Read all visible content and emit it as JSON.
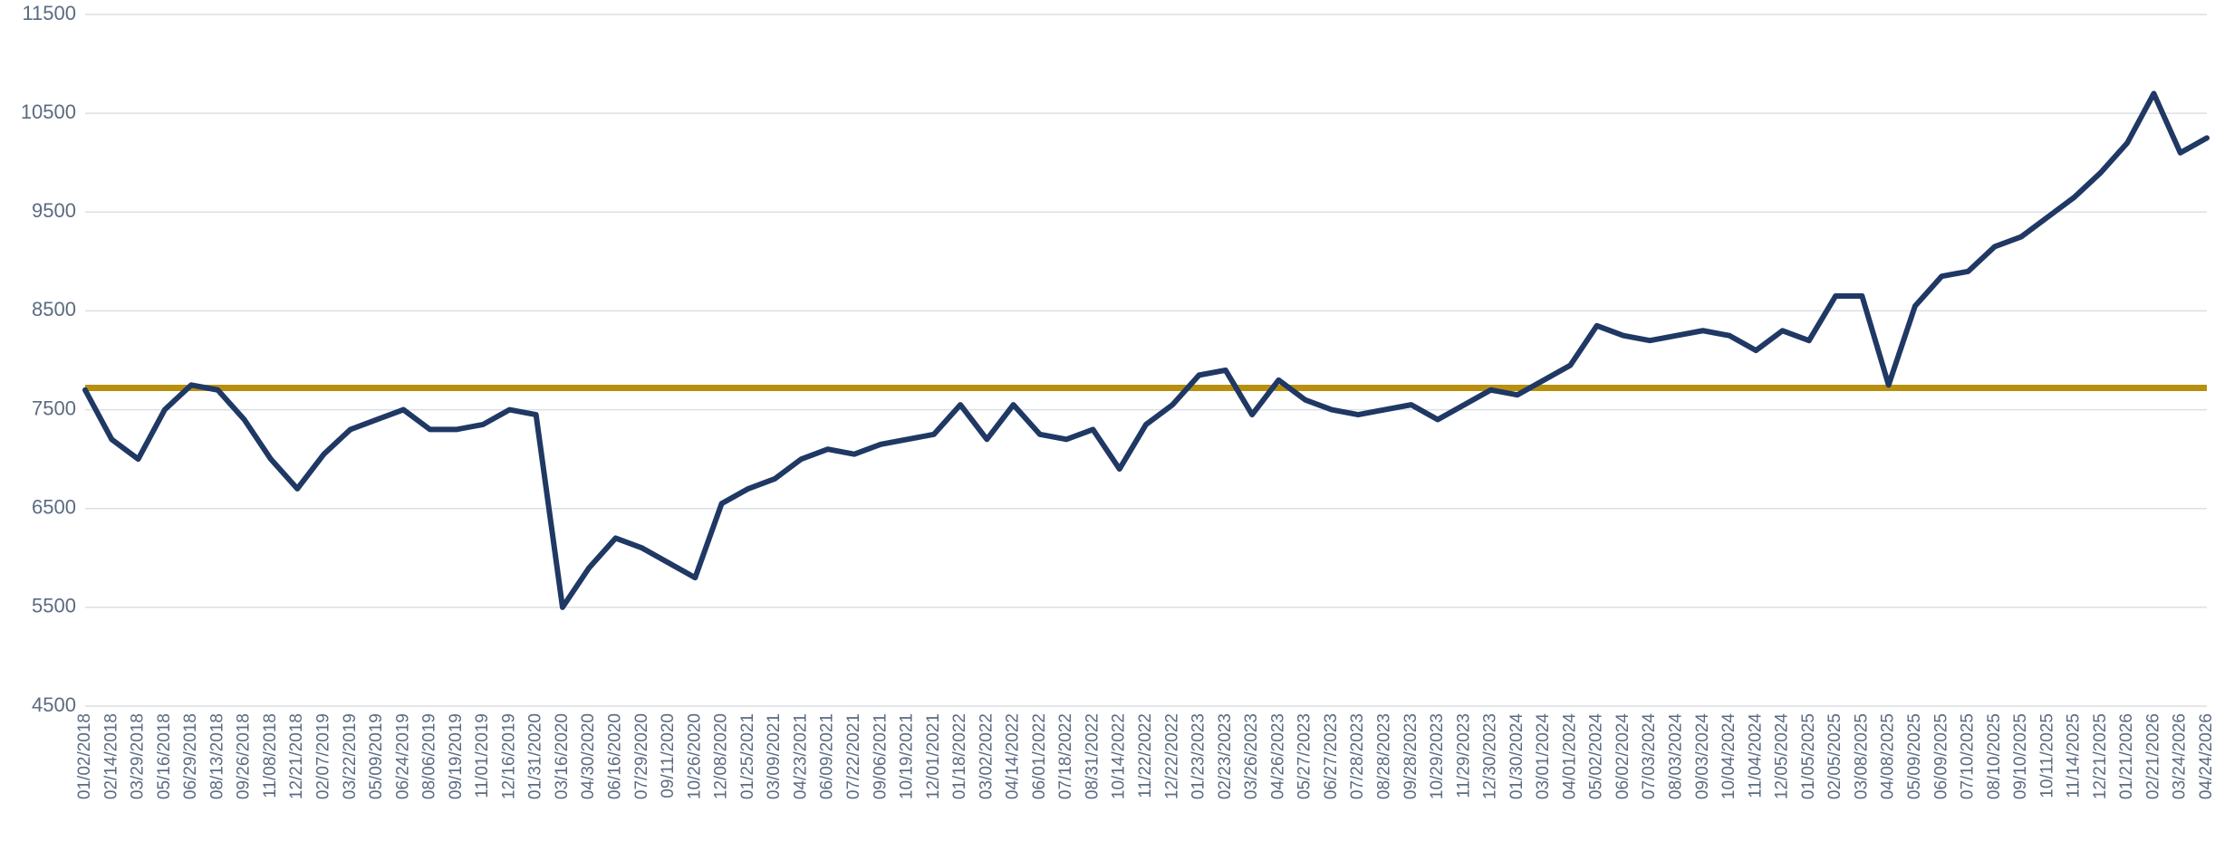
{
  "chart_data": {
    "type": "line",
    "categories": [
      "01/02/2018",
      "02/14/2018",
      "03/29/2018",
      "05/16/2018",
      "06/29/2018",
      "08/13/2018",
      "09/26/2018",
      "11/08/2018",
      "12/21/2018",
      "02/07/2019",
      "03/22/2019",
      "05/09/2019",
      "06/24/2019",
      "08/06/2019",
      "09/19/2019",
      "11/01/2019",
      "12/16/2019",
      "01/31/2020",
      "03/16/2020",
      "04/30/2020",
      "06/16/2020",
      "07/29/2020",
      "09/11/2020",
      "10/26/2020",
      "12/08/2020",
      "01/25/2021",
      "03/09/2021",
      "04/23/2021",
      "06/09/2021",
      "07/22/2021",
      "09/06/2021",
      "10/19/2021",
      "12/01/2021",
      "01/18/2022",
      "03/02/2022",
      "04/14/2022",
      "06/01/2022",
      "07/18/2022",
      "08/31/2022",
      "10/14/2022",
      "11/22/2022",
      "12/22/2022",
      "01/23/2023",
      "02/23/2023",
      "03/26/2023",
      "04/26/2023",
      "05/27/2023",
      "06/27/2023",
      "07/28/2023",
      "08/28/2023",
      "09/28/2023",
      "10/29/2023",
      "11/29/2023",
      "12/30/2023",
      "01/30/2024",
      "03/01/2024",
      "04/01/2024",
      "05/02/2024",
      "06/02/2024",
      "07/03/2024",
      "08/03/2024",
      "09/03/2024",
      "10/04/2024",
      "11/04/2024",
      "12/05/2024",
      "01/05/2025",
      "02/05/2025",
      "03/08/2025",
      "04/08/2025",
      "05/09/2025",
      "06/09/2025",
      "07/10/2025",
      "08/10/2025",
      "09/10/2025",
      "10/11/2025",
      "11/14/2025",
      "12/21/2025",
      "01/21/2026",
      "02/21/2026",
      "03/24/2026",
      "04/24/2026"
    ],
    "series": [
      {
        "color": "#1f3864",
        "values": [
          7700,
          7200,
          7000,
          7500,
          7750,
          7700,
          7400,
          7000,
          6700,
          7050,
          7300,
          7400,
          7500,
          7300,
          7300,
          7350,
          7500,
          7450,
          5500,
          5900,
          6200,
          6100,
          5950,
          5800,
          6550,
          6700,
          6800,
          7000,
          7100,
          7050,
          7150,
          7200,
          7250,
          7550,
          7200,
          7550,
          7250,
          7200,
          7300,
          6900,
          7350,
          7550,
          7850,
          7900,
          7450,
          7800,
          7600,
          7500,
          7450,
          7500,
          7550,
          7400,
          7550,
          7700,
          7650,
          7800,
          7950,
          8350,
          8250,
          8200,
          8250,
          8300,
          8250,
          8100,
          8300,
          8200,
          8650,
          8650,
          7750,
          8550,
          8850,
          8900,
          9150,
          9250,
          9450,
          9650,
          9900,
          10200,
          10700,
          10100,
          10250
        ]
      }
    ],
    "reference_line": {
      "value": 7720,
      "color": "#b8900f"
    },
    "ylim": [
      4500,
      11500
    ],
    "yticks": [
      4500,
      5500,
      6500,
      7500,
      8500,
      9500,
      10500,
      11500
    ],
    "grid": true
  }
}
